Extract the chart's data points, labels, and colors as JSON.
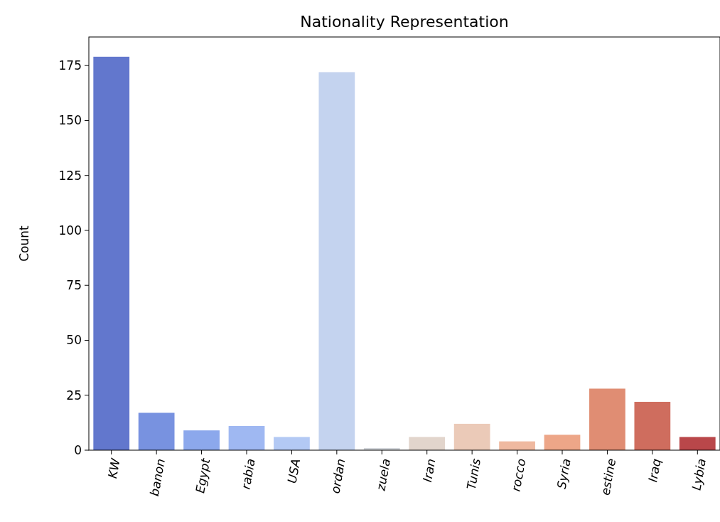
{
  "chart_data": {
    "type": "bar",
    "title": "Nationality Representation",
    "ylabel": "Count",
    "categories": [
      "KW",
      "banon",
      "Egypt",
      "rabia",
      "USA",
      "ordan",
      "zuela",
      "Iran",
      "Tunis",
      "rocco",
      "Syria",
      "estine",
      "Iraq",
      "Lybia"
    ],
    "values": [
      179,
      17,
      9,
      11,
      6,
      172,
      1,
      6,
      12,
      4,
      7,
      28,
      22,
      6
    ],
    "colors": [
      "#6277cd",
      "#7892e0",
      "#8ca8ec",
      "#9fb8f2",
      "#b3c9f4",
      "#c4d3ef",
      "#d4d7dc",
      "#e2d5cc",
      "#ebcab8",
      "#efb9a0",
      "#eda688",
      "#e08d73",
      "#cf6d5e",
      "#b9474a"
    ],
    "ylim": [
      0,
      188
    ],
    "yticks": [
      0,
      25,
      50,
      75,
      100,
      125,
      150,
      175
    ]
  }
}
